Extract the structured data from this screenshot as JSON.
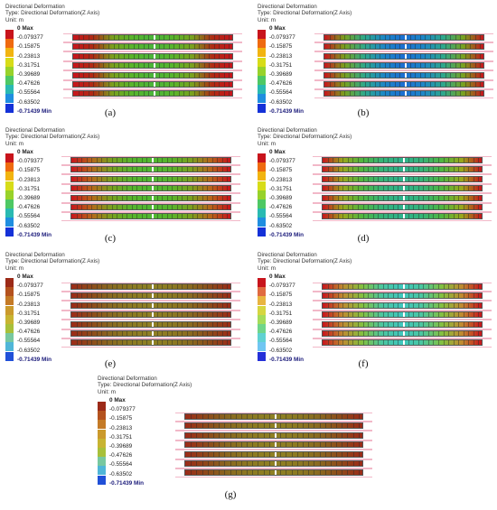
{
  "header": {
    "title": "Directional Deformation",
    "type": "Type: Directional Deformation(Z Axis)",
    "unit": "Unit: m"
  },
  "legend": {
    "labels": [
      "0 Max",
      "-0.079377",
      "-0.15875",
      "-0.23813",
      "-0.31751",
      "-0.39689",
      "-0.47626",
      "-0.55564",
      "-0.63502",
      "-0.71439 Min"
    ]
  },
  "palettes": {
    "standard": [
      "#c8141c",
      "#ef6a10",
      "#f2b410",
      "#d7dc18",
      "#98d22a",
      "#4ec864",
      "#2abab2",
      "#1f8ee0",
      "#1431d8"
    ],
    "sepia": [
      "#9c2a18",
      "#b4521e",
      "#c47a26",
      "#cb9a2c",
      "#c8b432",
      "#a8c03a",
      "#78c8a0",
      "#50b6d8",
      "#2050d8"
    ],
    "pastel": [
      "#c8141c",
      "#e06a40",
      "#e8b440",
      "#d6d640",
      "#a6dc5a",
      "#70d68a",
      "#60d2d2",
      "#70c6f2",
      "#2430d8"
    ]
  },
  "panels": [
    {
      "caption": "(a)",
      "palette": "standard",
      "strip": [
        "#c8141c",
        "#b02a14",
        "#7aa11e",
        "#58b52c",
        "#4cb43a",
        "#58b52c",
        "#7aa11e",
        "#b02a14",
        "#c8141c"
      ]
    },
    {
      "caption": "(b)",
      "palette": "standard",
      "strip": [
        "#c8141c",
        "#7aa11e",
        "#2fa88a",
        "#1d86c6",
        "#1c6ed2",
        "#1d86c6",
        "#2fa88a",
        "#7aa11e",
        "#c8141c"
      ]
    },
    {
      "caption": "(c)",
      "palette": "standard",
      "strip": [
        "#c8141c",
        "#b8661a",
        "#7aa11e",
        "#58b52c",
        "#50b830",
        "#58b52c",
        "#7aa11e",
        "#b8661a",
        "#c8141c"
      ]
    },
    {
      "caption": "(d)",
      "palette": "standard",
      "strip": [
        "#c8141c",
        "#9aa81c",
        "#50b640",
        "#36b478",
        "#2fb28c",
        "#36b478",
        "#50b640",
        "#9aa81c",
        "#c8141c"
      ]
    },
    {
      "caption": "(e)",
      "palette": "sepia",
      "strip": [
        "#9c2a18",
        "#8e4a1a",
        "#8a6a20",
        "#8d7a22",
        "#8f8024",
        "#8d7a22",
        "#8a6a20",
        "#8e4a1a",
        "#9c2a18"
      ]
    },
    {
      "caption": "(f)",
      "palette": "pastel",
      "strip": [
        "#c8141c",
        "#c08a30",
        "#84c040",
        "#4cc6a0",
        "#40c6bc",
        "#4cc6a0",
        "#84c040",
        "#c08a30",
        "#c8141c"
      ]
    },
    {
      "caption": "(g)",
      "palette": "sepia",
      "strip": [
        "#9c2a18",
        "#8e4a1a",
        "#8a6a20",
        "#8d7a22",
        "#8f8024",
        "#8d7a22",
        "#8a6a20",
        "#8e4a1a",
        "#9c2a18"
      ]
    }
  ]
}
